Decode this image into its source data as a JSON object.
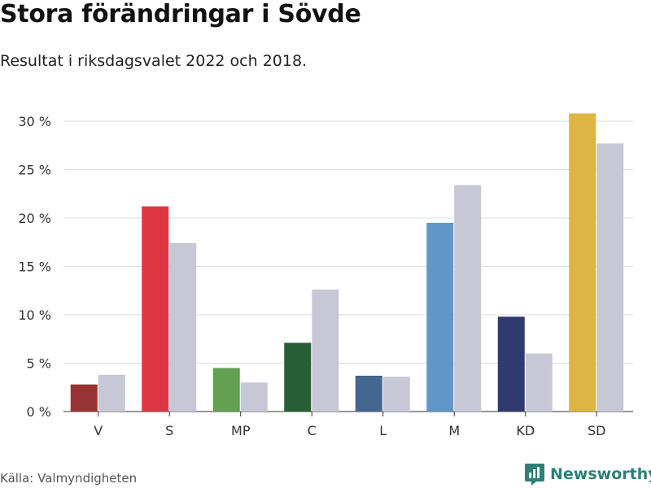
{
  "title": "Stora förändringar i Sövde",
  "subtitle": "Resultat i riksdagsvalet 2022 och 2018.",
  "source": "Källa: Valmyndigheten",
  "brand": "Newsworthy",
  "colors": {
    "comparison_bar": "#c8c7d5",
    "grid": "#dddddd",
    "brand": "#2c8076"
  },
  "chart_data": {
    "type": "bar",
    "categories": [
      "V",
      "S",
      "MP",
      "C",
      "L",
      "M",
      "KD",
      "SD"
    ],
    "series": [
      {
        "values": [
          2.8,
          21.2,
          4.5,
          7.1,
          3.7,
          19.5,
          9.8,
          30.8
        ],
        "colors": [
          "#993333",
          "#dd3640",
          "#62a052",
          "#275f35",
          "#43678f",
          "#6097c8",
          "#313a6e",
          "#deb443"
        ]
      },
      {
        "values": [
          3.8,
          17.4,
          3.0,
          12.6,
          3.6,
          23.4,
          6.0,
          27.7
        ],
        "color": "#c8c7d5"
      }
    ],
    "yticks": [
      0,
      5,
      10,
      15,
      20,
      25,
      30
    ],
    "ytick_labels": [
      "0 %",
      "5 %",
      "10 %",
      "15 %",
      "20 %",
      "25 %",
      "30 %"
    ],
    "ylim": [
      0,
      32
    ],
    "xlabel": "",
    "ylabel": "",
    "grid": true,
    "legend": "none"
  }
}
